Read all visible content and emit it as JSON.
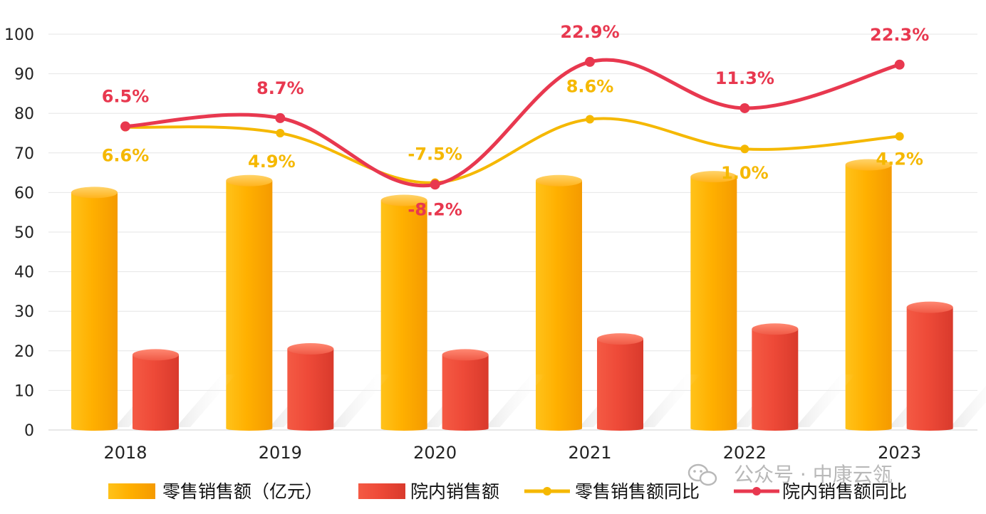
{
  "chart_data": {
    "type": "bar",
    "categories": [
      "2018",
      "2019",
      "2020",
      "2021",
      "2022",
      "2023"
    ],
    "ylim": [
      0,
      100
    ],
    "yticks": [
      0,
      10,
      20,
      30,
      40,
      50,
      60,
      70,
      80,
      90,
      100
    ],
    "ytick_labels": [
      "0",
      "10",
      "20",
      "30",
      "40",
      "50",
      "60",
      "70",
      "80",
      "90",
      "100"
    ],
    "grid": true,
    "legend_position": "bottom",
    "series": [
      {
        "name": "零售销售额（亿元）",
        "kind": "bar",
        "color": "#FFAE00",
        "values": [
          60,
          63,
          58,
          63,
          64,
          67
        ]
      },
      {
        "name": "院内销售额",
        "kind": "bar",
        "color": "#EE4A38",
        "values": [
          19,
          20.5,
          19,
          23,
          25.5,
          31
        ]
      },
      {
        "name": "零售销售额同比",
        "kind": "line",
        "color": "#F5B800",
        "values": [
          76.5,
          75,
          62.5,
          78.5,
          71,
          74.2
        ],
        "labels": [
          "6.6%",
          "4.9%",
          "-7.5%",
          "8.6%",
          "1.0%",
          "4.2%"
        ]
      },
      {
        "name": "院内销售额同比",
        "kind": "line",
        "color": "#E8384F",
        "values": [
          76.7,
          78.8,
          62,
          93,
          81.3,
          92.3
        ],
        "labels": [
          "6.5%",
          "8.7%",
          "-8.2%",
          "22.9%",
          "11.3%",
          "22.3%"
        ]
      }
    ]
  },
  "watermark": {
    "text": "公众号 · 中康云瓴",
    "icon": "wechat-icon"
  }
}
